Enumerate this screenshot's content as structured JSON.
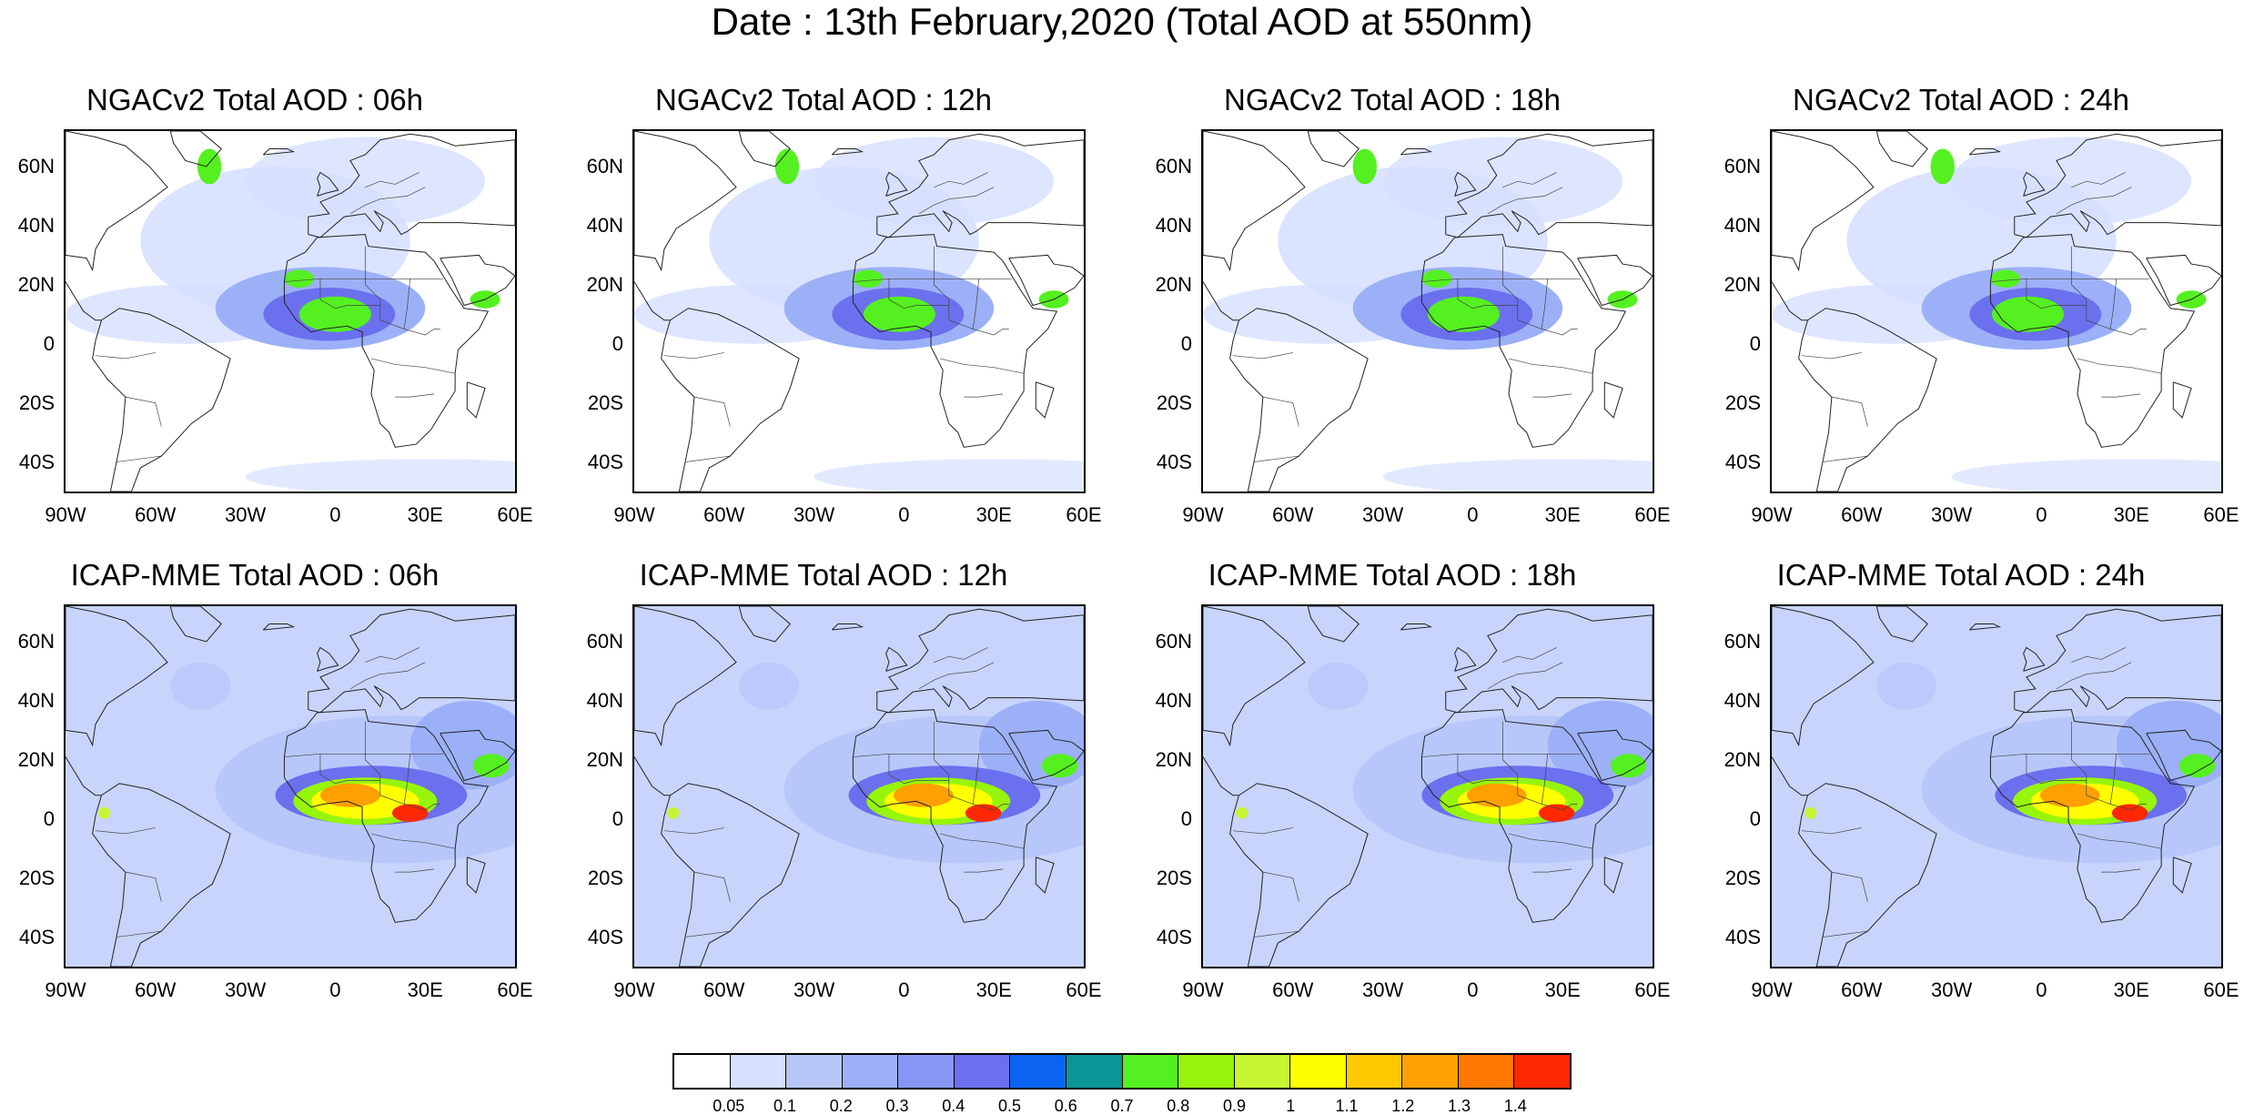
{
  "title": "Date : 13th February,2020 (Total AOD at 550nm)",
  "panels": [
    {
      "title": "NGACv2 Total AOD : 06h",
      "model": "ngac",
      "hour": 6
    },
    {
      "title": "NGACv2 Total AOD : 12h",
      "model": "ngac",
      "hour": 12
    },
    {
      "title": "NGACv2 Total AOD : 18h",
      "model": "ngac",
      "hour": 18
    },
    {
      "title": "NGACv2 Total AOD : 24h",
      "model": "ngac",
      "hour": 24
    },
    {
      "title": "ICAP-MME Total AOD : 06h",
      "model": "icap",
      "hour": 6
    },
    {
      "title": "ICAP-MME Total AOD : 12h",
      "model": "icap",
      "hour": 12
    },
    {
      "title": "ICAP-MME Total AOD : 18h",
      "model": "icap",
      "hour": 18
    },
    {
      "title": "ICAP-MME Total AOD : 24h",
      "model": "icap",
      "hour": 24
    }
  ],
  "lat_labels": [
    "60N",
    "40N",
    "20N",
    "0",
    "20S",
    "40S"
  ],
  "lon_labels": [
    "90W",
    "60W",
    "30W",
    "0",
    "30E",
    "60E"
  ],
  "colorbar": {
    "colors": [
      "#ffffff",
      "#d6e0ff",
      "#b8c7fa",
      "#9cb0f8",
      "#8796f5",
      "#6b70ee",
      "#0a64f0",
      "#0a9696",
      "#55f020",
      "#96f50a",
      "#c8f532",
      "#ffff00",
      "#ffc800",
      "#ffa000",
      "#ff7800",
      "#ff2800"
    ],
    "labels": [
      "0.05",
      "0.1",
      "0.2",
      "0.3",
      "0.4",
      "0.5",
      "0.6",
      "0.7",
      "0.8",
      "0.9",
      "1",
      "1.1",
      "1.2",
      "1.3",
      "1.4"
    ]
  }
}
